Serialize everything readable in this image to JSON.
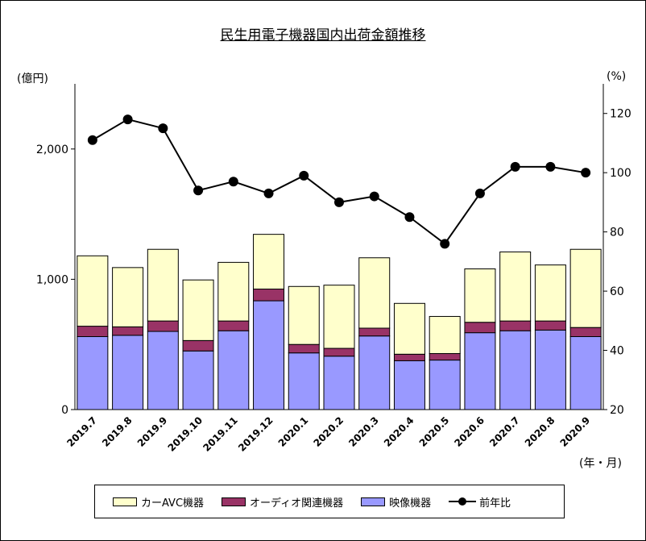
{
  "chart_data": {
    "type": "bar",
    "title": "民生用電子機器国内出荷金額推移",
    "left_unit": "(億円)",
    "right_unit": "(%)",
    "x_unit": "(年・月)",
    "categories": [
      "2019.7",
      "2019.8",
      "2019.9",
      "2019.10",
      "2019.11",
      "2019.12",
      "2020.1",
      "2020.2",
      "2020.3",
      "2020.4",
      "2020.5",
      "2020.6",
      "2020.7",
      "2020.8",
      "2020.9"
    ],
    "y_left": {
      "lim": [
        0,
        2500
      ],
      "ticks": [
        0,
        1000,
        2000
      ],
      "tick_labels": [
        "0",
        "1,000",
        "2,000"
      ]
    },
    "y_right": {
      "lim": [
        20,
        130
      ],
      "ticks": [
        20,
        40,
        60,
        80,
        100,
        120
      ],
      "tick_labels": [
        "20",
        "40",
        "60",
        "80",
        "100",
        "120"
      ]
    },
    "series": [
      {
        "name": "映像機器",
        "stack": "a",
        "axis": "left",
        "color": "#9999ff",
        "values": [
          560,
          570,
          600,
          450,
          605,
          835,
          435,
          410,
          565,
          375,
          380,
          590,
          605,
          610,
          560
        ]
      },
      {
        "name": "オーディオ関連機器",
        "stack": "a",
        "axis": "left",
        "color": "#993366",
        "values": [
          80,
          65,
          80,
          80,
          75,
          90,
          65,
          60,
          60,
          50,
          50,
          80,
          75,
          70,
          70
        ]
      },
      {
        "name": "カーAVC機器",
        "stack": "a",
        "axis": "left",
        "color": "#ffffcc",
        "values": [
          540,
          455,
          550,
          465,
          450,
          420,
          445,
          485,
          540,
          390,
          285,
          410,
          530,
          430,
          600
        ]
      },
      {
        "name": "前年比",
        "type": "line",
        "axis": "right",
        "color": "#000000",
        "values": [
          111,
          118,
          115,
          94,
          97,
          93,
          99,
          90,
          92,
          85,
          76,
          93,
          102,
          102,
          100
        ]
      }
    ],
    "legend": [
      "カーAVC機器",
      "オーディオ関連機器",
      "映像機器",
      "前年比"
    ],
    "legend_position": "bottom",
    "grid": false
  }
}
